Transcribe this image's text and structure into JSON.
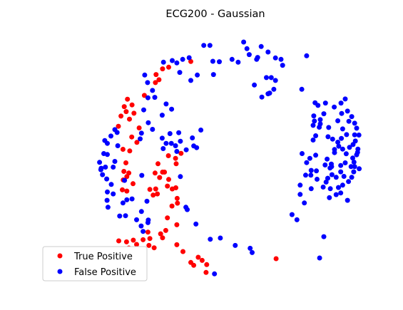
{
  "chart_data": {
    "type": "scatter",
    "title": "ECG200 - Gaussian",
    "xlabel": "",
    "ylabel": "",
    "axes_visible": false,
    "grid": false,
    "legend_placement": "lower-left",
    "xlim": [
      0,
      100
    ],
    "ylim": [
      0,
      100
    ],
    "series": [
      {
        "name": "True Positive",
        "color": "#ff0000",
        "points": [
          [
            42.3,
            89.1
          ],
          [
            35.5,
            86.7
          ],
          [
            33.6,
            86.0
          ],
          [
            31.6,
            83.6
          ],
          [
            31.4,
            80.2
          ],
          [
            32.5,
            81.4
          ],
          [
            28.0,
            74.8
          ],
          [
            22.8,
            73.2
          ],
          [
            21.8,
            70.1
          ],
          [
            24.2,
            70.8
          ],
          [
            22.4,
            68.0
          ],
          [
            24.8,
            67.3
          ],
          [
            20.8,
            66.1
          ],
          [
            23.4,
            64.8
          ],
          [
            20.0,
            61.8
          ],
          [
            26.4,
            61.1
          ],
          [
            24.1,
            57.3
          ],
          [
            25.7,
            55.0
          ],
          [
            21.4,
            52.1
          ],
          [
            23.5,
            51.4
          ],
          [
            22.3,
            46.4
          ],
          [
            21.7,
            42.8
          ],
          [
            23.2,
            42.1
          ],
          [
            22.6,
            40.6
          ],
          [
            21.5,
            39.2
          ],
          [
            24.5,
            37.6
          ],
          [
            21.2,
            35.0
          ],
          [
            22.6,
            34.5
          ],
          [
            35.4,
            49.4
          ],
          [
            39.3,
            50.4
          ],
          [
            37.6,
            48.3
          ],
          [
            37.8,
            46.0
          ],
          [
            32.2,
            46.0
          ],
          [
            33.6,
            42.5
          ],
          [
            31.3,
            42.1
          ],
          [
            34.2,
            42.5
          ],
          [
            32.7,
            40.2
          ],
          [
            35.5,
            39.4
          ],
          [
            35.1,
            36.6
          ],
          [
            37.7,
            35.9
          ],
          [
            31.5,
            35.4
          ],
          [
            29.7,
            35.2
          ],
          [
            32.0,
            33.3
          ],
          [
            30.7,
            32.8
          ],
          [
            36.6,
            35.4
          ],
          [
            38.1,
            31.4
          ],
          [
            38.2,
            29.4
          ],
          [
            36.5,
            28.2
          ],
          [
            35.1,
            23.2
          ],
          [
            38.0,
            20.3
          ],
          [
            29.1,
            17.2
          ],
          [
            33.0,
            16.5
          ],
          [
            34.6,
            17.9
          ],
          [
            33.6,
            14.8
          ],
          [
            29.7,
            14.5
          ],
          [
            27.6,
            14.0
          ],
          [
            29.4,
            11.6
          ],
          [
            31.0,
            10.6
          ],
          [
            27.6,
            10.1
          ],
          [
            24.6,
            13.8
          ],
          [
            25.6,
            12.0
          ],
          [
            22.5,
            13.1
          ],
          [
            23.2,
            10.5
          ],
          [
            22.1,
            8.6
          ],
          [
            20.1,
            13.5
          ],
          [
            38.0,
            11.9
          ],
          [
            39.9,
            9.0
          ],
          [
            44.6,
            6.6
          ],
          [
            42.3,
            4.4
          ],
          [
            43.2,
            3.2
          ],
          [
            45.8,
            5.3
          ],
          [
            47.2,
            3.5
          ],
          [
            47.0,
            0.2
          ],
          [
            68.6,
            6.0
          ]
        ]
      },
      {
        "name": "False Positive",
        "color": "#0000ff",
        "points": [
          [
            46.3,
            95.9
          ],
          [
            48.2,
            95.9
          ],
          [
            58.6,
            97.3
          ],
          [
            59.6,
            94.5
          ],
          [
            60.3,
            92.0
          ],
          [
            64.0,
            95.4
          ],
          [
            66.1,
            93.1
          ],
          [
            62.9,
            90.8
          ],
          [
            62.6,
            90.0
          ],
          [
            70.1,
            90.0
          ],
          [
            68.4,
            90.6
          ],
          [
            70.6,
            87.5
          ],
          [
            55.0,
            90.0
          ],
          [
            56.9,
            88.8
          ],
          [
            33.9,
            88.8
          ],
          [
            36.6,
            89.5
          ],
          [
            38.0,
            88.5
          ],
          [
            39.8,
            90.0
          ],
          [
            41.8,
            90.7
          ],
          [
            49.1,
            89.2
          ],
          [
            51.1,
            89.0
          ],
          [
            38.9,
            84.5
          ],
          [
            44.3,
            83.4
          ],
          [
            49.3,
            83.6
          ],
          [
            67.1,
            82.3
          ],
          [
            61.9,
            79.2
          ],
          [
            65.6,
            82.3
          ],
          [
            68.4,
            81.1
          ],
          [
            67.9,
            77.4
          ],
          [
            66.1,
            75.5
          ],
          [
            66.6,
            75.8
          ],
          [
            64.2,
            74.1
          ],
          [
            76.5,
            77.4
          ],
          [
            78.0,
            91.5
          ],
          [
            42.3,
            81.1
          ],
          [
            28.1,
            83.4
          ],
          [
            29.0,
            80.2
          ],
          [
            29.1,
            73.8
          ],
          [
            30.5,
            76.9
          ],
          [
            31.2,
            74.0
          ],
          [
            34.7,
            71.2
          ],
          [
            36.4,
            69.0
          ],
          [
            33.5,
            66.5
          ],
          [
            27.8,
            68.7
          ],
          [
            29.2,
            63.3
          ],
          [
            30.5,
            60.5
          ],
          [
            27.1,
            58.9
          ],
          [
            26.7,
            56.5
          ],
          [
            33.5,
            56.8
          ],
          [
            34.7,
            54.6
          ],
          [
            33.8,
            52.4
          ],
          [
            37.6,
            53.6
          ],
          [
            38.0,
            51.2
          ],
          [
            36.3,
            54.6
          ],
          [
            39.1,
            55.5
          ],
          [
            35.9,
            58.7
          ],
          [
            38.6,
            59.1
          ],
          [
            40.9,
            51.9
          ],
          [
            43.2,
            53.5
          ],
          [
            42.8,
            56.9
          ],
          [
            45.4,
            60.2
          ],
          [
            44.1,
            52.8
          ],
          [
            18.9,
            60.4
          ],
          [
            19.6,
            59.2
          ],
          [
            17.7,
            57.7
          ],
          [
            15.8,
            55.8
          ],
          [
            16.6,
            54.6
          ],
          [
            16.6,
            49.9
          ],
          [
            19.8,
            53.6
          ],
          [
            15.5,
            50.3
          ],
          [
            14.2,
            46.6
          ],
          [
            14.7,
            44.1
          ],
          [
            18.9,
            47.0
          ],
          [
            18.4,
            44.6
          ],
          [
            16.0,
            44.6
          ],
          [
            14.6,
            43.5
          ],
          [
            15.1,
            41.4
          ],
          [
            16.4,
            39.6
          ],
          [
            17.8,
            37.3
          ],
          [
            16.6,
            34.1
          ],
          [
            18.4,
            33.3
          ],
          [
            16.5,
            30.6
          ],
          [
            16.8,
            27.7
          ],
          [
            21.9,
            39.0
          ],
          [
            22.6,
            30.8
          ],
          [
            24.2,
            31.2
          ],
          [
            21.4,
            29.5
          ],
          [
            28.8,
            30.2
          ],
          [
            27.2,
            41.1
          ],
          [
            20.4,
            24.0
          ],
          [
            22.2,
            24.1
          ],
          [
            25.6,
            22.4
          ],
          [
            27.1,
            25.9
          ],
          [
            27.0,
            19.8
          ],
          [
            27.6,
            17.5
          ],
          [
            29.2,
            22.3
          ],
          [
            29.1,
            21.2
          ],
          [
            41.2,
            26.7
          ],
          [
            39.1,
            40.6
          ],
          [
            40.8,
            27.7
          ],
          [
            48.3,
            14.2
          ],
          [
            43.9,
            20.6
          ],
          [
            51.4,
            14.7
          ],
          [
            56.0,
            11.6
          ],
          [
            60.6,
            10.4
          ],
          [
            61.2,
            8.6
          ],
          [
            49.6,
            -0.4
          ],
          [
            76.6,
            50.3
          ],
          [
            80.8,
            49.6
          ],
          [
            80.0,
            56.0
          ],
          [
            80.8,
            57.8
          ],
          [
            79.0,
            48.3
          ],
          [
            79.4,
            43.2
          ],
          [
            81.0,
            43.0
          ],
          [
            81.2,
            39.5
          ],
          [
            79.3,
            41.2
          ],
          [
            78.0,
            46.5
          ],
          [
            77.7,
            41.2
          ],
          [
            79.4,
            35.5
          ],
          [
            83.7,
            45.5
          ],
          [
            84.3,
            48.0
          ],
          [
            85.7,
            44.8
          ],
          [
            85.8,
            41.4
          ],
          [
            84.5,
            39.9
          ],
          [
            85.3,
            35.5
          ],
          [
            87.1,
            40.3
          ],
          [
            83.1,
            36.2
          ],
          [
            84.0,
            38.3
          ],
          [
            85.6,
            45.9
          ],
          [
            86.6,
            50.7
          ],
          [
            88.5,
            42.6
          ],
          [
            85.2,
            44.2
          ],
          [
            80.4,
            64.0
          ],
          [
            81.9,
            61.4
          ],
          [
            82.2,
            62.8
          ],
          [
            80.0,
            62.2
          ],
          [
            80.6,
            71.7
          ],
          [
            81.5,
            70.6
          ],
          [
            83.3,
            67.1
          ],
          [
            80.2,
            66.2
          ],
          [
            82.2,
            64.6
          ],
          [
            83.8,
            71.6
          ],
          [
            86.5,
            69.9
          ],
          [
            88.8,
            67.2
          ],
          [
            87.6,
            64.1
          ],
          [
            84.8,
            61.3
          ],
          [
            84.6,
            57.4
          ],
          [
            86.0,
            56.4
          ],
          [
            86.6,
            52.0
          ],
          [
            87.6,
            55.1
          ],
          [
            89.9,
            73.3
          ],
          [
            88.6,
            71.6
          ],
          [
            90.6,
            68.2
          ],
          [
            91.0,
            63.9
          ],
          [
            89.1,
            60.7
          ],
          [
            88.7,
            56.7
          ],
          [
            87.9,
            53.4
          ],
          [
            89.1,
            52.2
          ],
          [
            90.3,
            58.3
          ],
          [
            92.8,
            58.2
          ],
          [
            92.3,
            54.1
          ],
          [
            91.2,
            52.9
          ],
          [
            90.2,
            50.2
          ],
          [
            92.2,
            48.4
          ],
          [
            92.6,
            46.7
          ],
          [
            91.7,
            44.8
          ],
          [
            92.5,
            42.6
          ],
          [
            89.9,
            46.4
          ],
          [
            88.5,
            45.3
          ],
          [
            89.5,
            40.7
          ],
          [
            90.9,
            38.5
          ],
          [
            89.1,
            37.0
          ],
          [
            87.1,
            33.0
          ],
          [
            88.5,
            33.7
          ],
          [
            87.8,
            36.0
          ],
          [
            91.9,
            40.3
          ],
          [
            92.8,
            44.8
          ],
          [
            93.4,
            49.8
          ],
          [
            93.8,
            52.2
          ],
          [
            93.0,
            55.6
          ],
          [
            94.1,
            58.1
          ],
          [
            93.4,
            61.0
          ],
          [
            92.8,
            63.1
          ],
          [
            91.9,
            65.9
          ],
          [
            93.7,
            50.8
          ],
          [
            94.2,
            43.9
          ],
          [
            90.6,
            30.6
          ],
          [
            85.0,
            31.7
          ],
          [
            83.3,
            15.3
          ],
          [
            82.0,
            6.3
          ],
          [
            75.0,
            22.4
          ],
          [
            77.3,
            29.5
          ],
          [
            76.0,
            33.1
          ],
          [
            76.0,
            37.0
          ],
          [
            73.5,
            24.6
          ]
        ]
      }
    ]
  }
}
